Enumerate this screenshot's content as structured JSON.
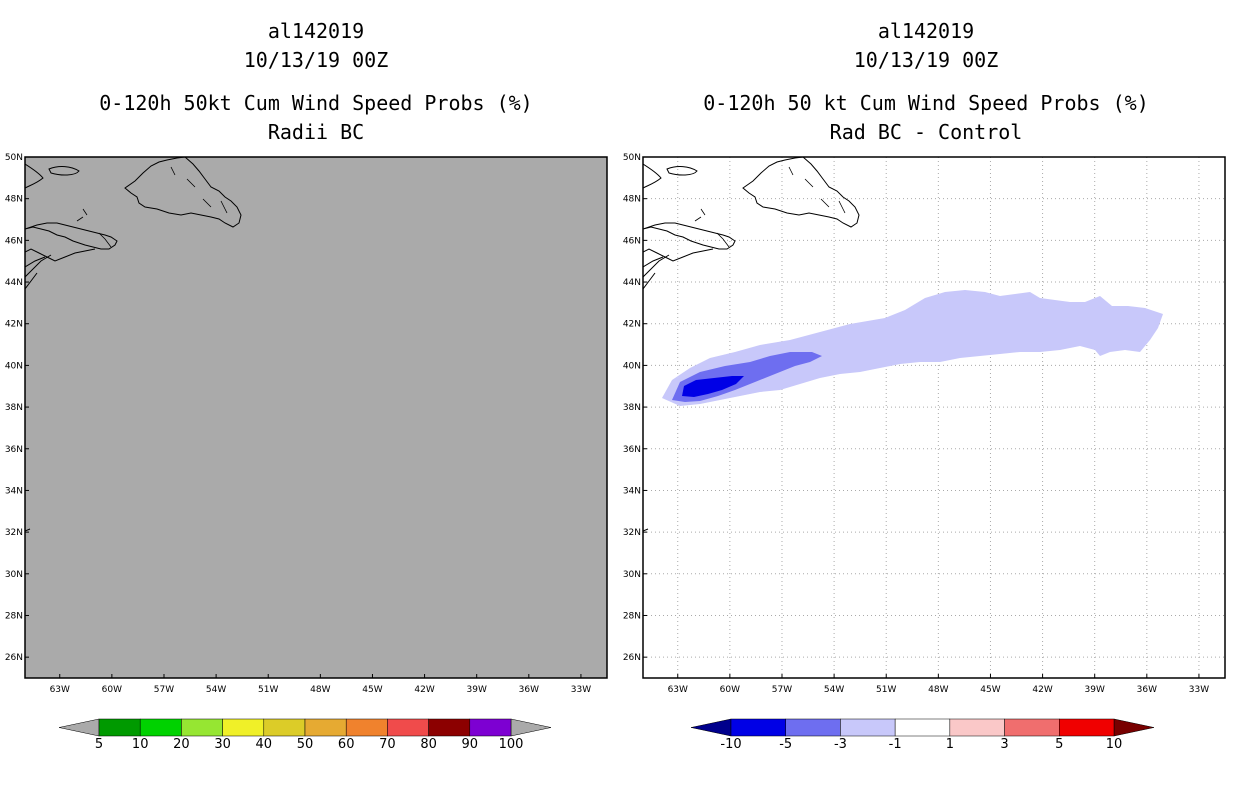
{
  "left_panel": {
    "storm_id": "al142019",
    "date": "10/13/19 00Z",
    "title": "0-120h 50kt Cum Wind Speed Probs (%)",
    "subtitle": "Radii BC",
    "background_color": "#aaaaaa"
  },
  "right_panel": {
    "storm_id": "al142019",
    "date": "10/13/19 00Z",
    "title": "0-120h 50 kt Cum Wind Speed Probs (%)",
    "subtitle": "Rad BC - Control",
    "background_color": "#ffffff"
  },
  "map": {
    "lat_labels": [
      "50N",
      "48N",
      "46N",
      "44N",
      "42N",
      "40N",
      "38N",
      "36N",
      "34N",
      "32N",
      "30N",
      "28N",
      "26N"
    ],
    "lon_labels": [
      "63W",
      "60W",
      "57W",
      "54W",
      "51W",
      "48W",
      "45W",
      "42W",
      "39W",
      "36W",
      "33W"
    ],
    "lat_range": [
      25,
      50
    ],
    "lon_range": [
      -65,
      -31.5
    ]
  },
  "left_colorbar": {
    "labels": [
      "5",
      "10",
      "20",
      "30",
      "40",
      "50",
      "60",
      "70",
      "80",
      "90",
      "100"
    ],
    "colors": [
      "#009a00",
      "#00d200",
      "#96e632",
      "#f0f028",
      "#dccc28",
      "#e6aa32",
      "#f0822d",
      "#f04b4b",
      "#8c0000",
      "#7d00d2"
    ],
    "extend_color": "#aaaaaa"
  },
  "right_colorbar": {
    "labels": [
      "-10",
      "-5",
      "-3",
      "-1",
      "1",
      "3",
      "5",
      "10"
    ],
    "colors": [
      "#0000e6",
      "#6e6ef0",
      "#c8c8fa",
      "#ffffff",
      "#fac8c8",
      "#f06e6e",
      "#f00000"
    ],
    "low_extend_color": "#00008c",
    "high_extend_color": "#780000"
  },
  "difference_contours": [
    {
      "level": "-3 to -1",
      "color": "#c8c8fa"
    },
    {
      "level": "-5 to -3",
      "color": "#6e6ef0"
    },
    {
      "level": "-10 to -5",
      "color": "#0000e6"
    }
  ]
}
